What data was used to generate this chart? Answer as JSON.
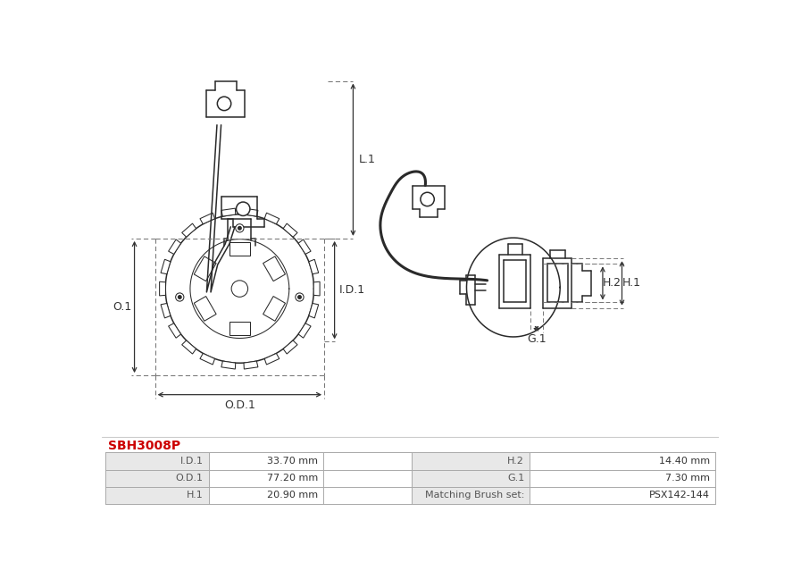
{
  "title": "SBH3008P",
  "title_color": "#cc0000",
  "bg_color": "#ffffff",
  "table_rows": [
    {
      "label": "I.D.1",
      "value": "33.70 mm",
      "label2": "H.2",
      "value2": "14.40 mm"
    },
    {
      "label": "O.D.1",
      "value": "77.20 mm",
      "label2": "G.1",
      "value2": "7.30 mm"
    },
    {
      "label": "H.1",
      "value": "20.90 mm",
      "label2": "Matching Brush set:",
      "value2": "PSX142-144"
    }
  ],
  "line_color": "#2a2a2a",
  "table_label_bg": "#e8e8e8",
  "table_border": "#aaaaaa",
  "title_font_size": 10,
  "table_font_size": 8
}
